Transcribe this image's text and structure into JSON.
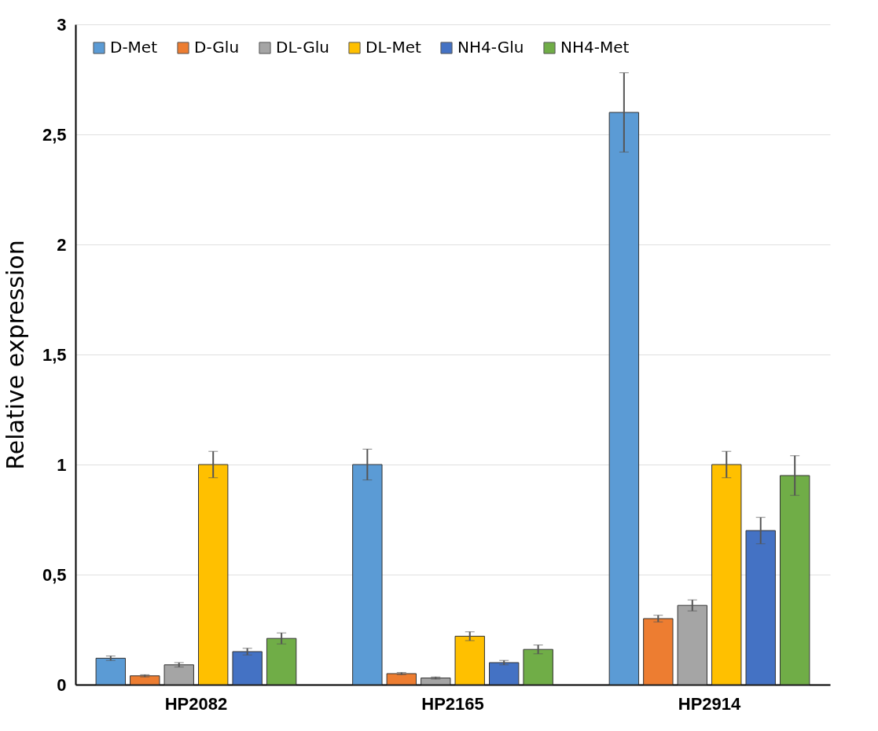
{
  "chart_data": {
    "type": "bar",
    "ylabel": "Relative expression",
    "categories": [
      "HP2082",
      "HP2165",
      "HP2914"
    ],
    "series": [
      {
        "name": "D-Met",
        "color": "#5b9bd5",
        "values": [
          0.12,
          1.0,
          2.6
        ],
        "errors": [
          0.01,
          0.07,
          0.18
        ]
      },
      {
        "name": "D-Glu",
        "color": "#ed7d31",
        "values": [
          0.04,
          0.05,
          0.3
        ],
        "errors": [
          0.005,
          0.005,
          0.015
        ]
      },
      {
        "name": "DL-Glu",
        "color": "#a5a5a5",
        "values": [
          0.09,
          0.03,
          0.36
        ],
        "errors": [
          0.01,
          0.005,
          0.025
        ]
      },
      {
        "name": "DL-Met",
        "color": "#ffc000",
        "values": [
          1.0,
          0.22,
          1.0
        ],
        "errors": [
          0.06,
          0.02,
          0.06
        ]
      },
      {
        "name": "NH4-Glu",
        "color": "#4472c4",
        "values": [
          0.15,
          0.1,
          0.7
        ],
        "errors": [
          0.015,
          0.01,
          0.06
        ]
      },
      {
        "name": "NH4-Met",
        "color": "#70ad47",
        "values": [
          0.21,
          0.16,
          0.95
        ],
        "errors": [
          0.025,
          0.02,
          0.09
        ]
      }
    ],
    "ylim": [
      0,
      3
    ],
    "yticks": [
      0,
      {
        "value": 0.5,
        "label": "0,5"
      },
      1,
      {
        "value": 1.5,
        "label": "1,5"
      },
      2,
      {
        "value": 2.5,
        "label": "2,5"
      },
      3
    ],
    "grid": "y",
    "legend": "top left"
  }
}
